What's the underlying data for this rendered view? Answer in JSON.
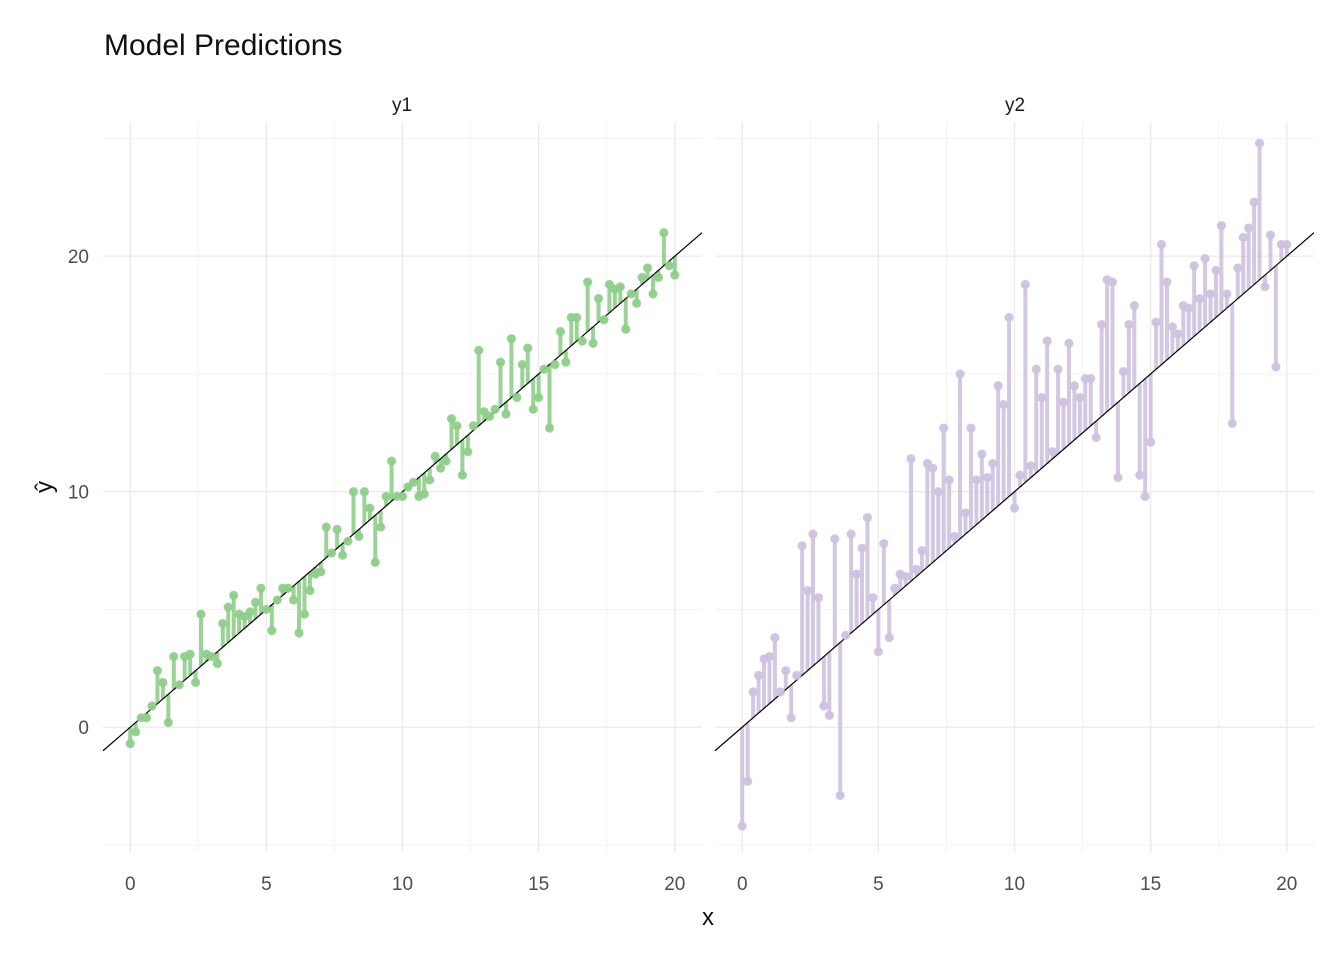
{
  "chart_data": {
    "type": "scatter",
    "title": "Model Predictions",
    "xlabel": "x",
    "ylabel": "ŷ",
    "xlim": [
      -1,
      21
    ],
    "ylim": [
      -5.3,
      25.7
    ],
    "x_ticks": [
      0,
      5,
      10,
      15,
      20
    ],
    "y_ticks": [
      0,
      10,
      20
    ],
    "grid": true,
    "reference_line": {
      "slope": 1,
      "intercept": 0
    },
    "facets": [
      {
        "name": "y1",
        "color": "#8fce8a",
        "x": [
          0.0,
          0.2,
          0.4,
          0.6,
          0.8,
          1.0,
          1.2,
          1.4,
          1.6,
          1.8,
          2.0,
          2.2,
          2.4,
          2.6,
          2.8,
          3.0,
          3.2,
          3.4,
          3.6,
          3.8,
          4.0,
          4.2,
          4.4,
          4.6,
          4.8,
          5.0,
          5.2,
          5.4,
          5.6,
          5.8,
          6.0,
          6.2,
          6.4,
          6.6,
          6.8,
          7.0,
          7.2,
          7.4,
          7.6,
          7.8,
          8.0,
          8.2,
          8.4,
          8.6,
          8.8,
          9.0,
          9.2,
          9.4,
          9.6,
          9.8,
          10.0,
          10.2,
          10.4,
          10.6,
          10.8,
          11.0,
          11.2,
          11.4,
          11.6,
          11.8,
          12.0,
          12.2,
          12.4,
          12.6,
          12.8,
          13.0,
          13.2,
          13.4,
          13.6,
          13.8,
          14.0,
          14.2,
          14.4,
          14.6,
          14.8,
          15.0,
          15.2,
          15.4,
          15.6,
          15.8,
          16.0,
          16.2,
          16.4,
          16.6,
          16.8,
          17.0,
          17.2,
          17.4,
          17.6,
          17.8,
          18.0,
          18.2,
          18.4,
          18.6,
          18.8,
          19.0,
          19.2,
          19.4,
          19.6,
          19.8,
          20.0
        ],
        "y": [
          -0.7,
          -0.2,
          0.4,
          0.4,
          0.9,
          2.4,
          1.9,
          0.2,
          3.0,
          1.8,
          3.0,
          3.1,
          1.9,
          4.8,
          3.1,
          3.0,
          2.7,
          4.4,
          5.1,
          5.6,
          4.8,
          4.7,
          4.9,
          5.3,
          5.9,
          5.0,
          4.1,
          5.4,
          5.9,
          5.9,
          5.4,
          4.0,
          4.8,
          5.8,
          6.5,
          6.6,
          8.5,
          7.4,
          8.4,
          7.3,
          7.9,
          10.0,
          8.1,
          10.0,
          9.3,
          7.0,
          8.5,
          9.8,
          11.3,
          9.8,
          9.8,
          10.2,
          10.4,
          9.8,
          9.9,
          10.5,
          11.5,
          11.0,
          11.3,
          13.1,
          12.8,
          10.7,
          11.7,
          12.8,
          16.0,
          13.4,
          13.2,
          13.5,
          15.5,
          13.3,
          16.5,
          14.0,
          15.4,
          16.1,
          13.5,
          14.0,
          15.2,
          12.7,
          15.4,
          16.8,
          15.5,
          17.4,
          17.4,
          16.4,
          18.9,
          16.3,
          18.2,
          17.3,
          18.8,
          18.6,
          18.7,
          16.9,
          18.4,
          18.0,
          19.1,
          19.5,
          18.4,
          19.1,
          21.0,
          19.6,
          19.2
        ]
      },
      {
        "name": "y2",
        "color": "#cfc1df",
        "x": [
          0.0,
          0.2,
          0.4,
          0.6,
          0.8,
          1.0,
          1.2,
          1.4,
          1.6,
          1.8,
          2.0,
          2.2,
          2.4,
          2.6,
          2.8,
          3.0,
          3.2,
          3.4,
          3.6,
          3.8,
          4.0,
          4.2,
          4.4,
          4.6,
          4.8,
          5.0,
          5.2,
          5.4,
          5.6,
          5.8,
          6.0,
          6.2,
          6.4,
          6.6,
          6.8,
          7.0,
          7.2,
          7.4,
          7.6,
          7.8,
          8.0,
          8.2,
          8.4,
          8.6,
          8.8,
          9.0,
          9.2,
          9.4,
          9.6,
          9.8,
          10.0,
          10.2,
          10.4,
          10.6,
          10.8,
          11.0,
          11.2,
          11.4,
          11.6,
          11.8,
          12.0,
          12.2,
          12.4,
          12.6,
          12.8,
          13.0,
          13.2,
          13.4,
          13.6,
          13.8,
          14.0,
          14.2,
          14.4,
          14.6,
          14.8,
          15.0,
          15.2,
          15.4,
          15.6,
          15.8,
          16.0,
          16.2,
          16.4,
          16.6,
          16.8,
          17.0,
          17.2,
          17.4,
          17.6,
          17.8,
          18.0,
          18.2,
          18.4,
          18.6,
          18.8,
          19.0,
          19.2,
          19.4,
          19.6,
          19.8,
          20.0
        ],
        "y": [
          -4.2,
          -2.3,
          1.5,
          2.2,
          2.9,
          3.0,
          3.8,
          1.5,
          2.4,
          0.4,
          2.2,
          7.7,
          5.8,
          8.2,
          5.5,
          0.9,
          0.5,
          8.0,
          -2.9,
          3.9,
          8.2,
          6.5,
          7.6,
          8.9,
          5.5,
          3.2,
          7.8,
          3.8,
          5.9,
          6.5,
          6.4,
          11.4,
          6.7,
          7.5,
          11.2,
          11.0,
          10.0,
          12.7,
          10.5,
          8.1,
          15.0,
          9.1,
          12.7,
          10.5,
          11.6,
          10.6,
          11.2,
          14.5,
          13.7,
          17.4,
          9.3,
          10.7,
          18.8,
          11.1,
          15.2,
          14.0,
          16.4,
          11.7,
          15.2,
          13.8,
          16.3,
          14.5,
          14.0,
          14.8,
          14.8,
          12.3,
          17.1,
          19.0,
          18.9,
          10.6,
          15.1,
          17.1,
          17.9,
          10.7,
          9.8,
          12.1,
          17.2,
          20.5,
          18.9,
          17.0,
          16.7,
          17.9,
          17.8,
          19.6,
          18.2,
          19.9,
          18.4,
          19.4,
          21.3,
          18.4,
          12.9,
          19.5,
          20.8,
          21.2,
          22.3,
          24.8,
          18.7,
          20.9,
          15.3,
          20.5,
          20.5
        ]
      }
    ]
  }
}
